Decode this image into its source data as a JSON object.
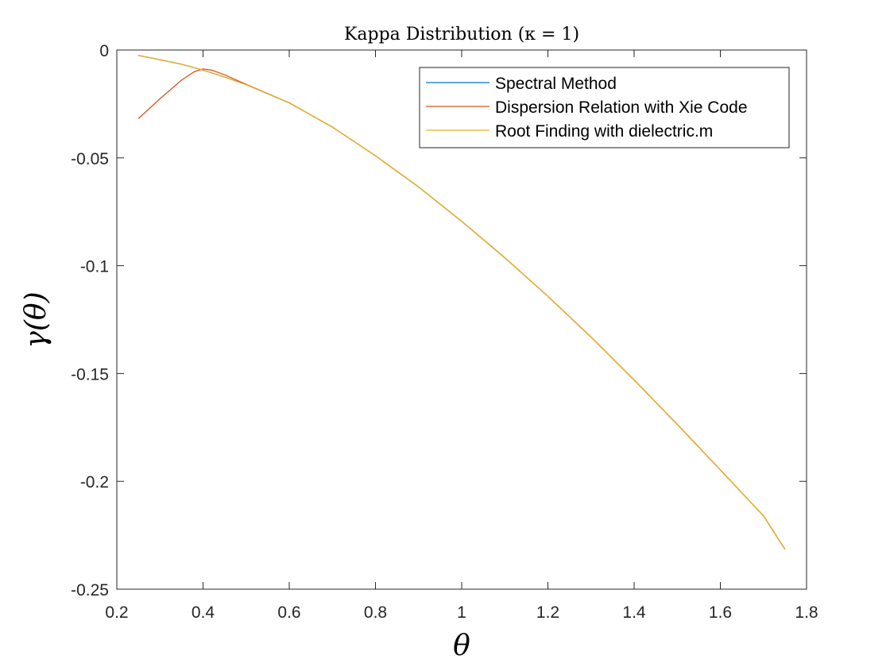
{
  "chart_data": {
    "type": "line",
    "title": "Kappa Distribution (κ = 1)",
    "xlabel": "θ",
    "ylabel": "γ(θ)",
    "xlim": [
      0.2,
      1.8
    ],
    "ylim": [
      -0.25,
      0
    ],
    "xticks": [
      0.2,
      0.4,
      0.6,
      0.8,
      1,
      1.2,
      1.4,
      1.6,
      1.8
    ],
    "xtick_labels": [
      "0.2",
      "0.4",
      "0.6",
      "0.8",
      "1",
      "1.2",
      "1.4",
      "1.6",
      "1.8"
    ],
    "yticks": [
      0,
      -0.05,
      -0.1,
      -0.15,
      -0.2,
      -0.25
    ],
    "ytick_labels": [
      "0",
      "-0.05",
      "-0.1",
      "-0.15",
      "-0.2",
      "-0.25"
    ],
    "grid": false,
    "legend_position": "top-right",
    "series": [
      {
        "name": "Spectral Method",
        "color": "#0072BD",
        "x": [
          0.25,
          0.3,
          0.35,
          0.4,
          0.45,
          0.5,
          0.6,
          0.7,
          0.8,
          0.9,
          1.0,
          1.1,
          1.2,
          1.3,
          1.4,
          1.5,
          1.6,
          1.7,
          1.75
        ],
        "y": [
          -0.0025,
          -0.0045,
          -0.0066,
          -0.0093,
          -0.0125,
          -0.0161,
          -0.0245,
          -0.0357,
          -0.049,
          -0.0635,
          -0.0794,
          -0.0963,
          -0.1142,
          -0.1331,
          -0.153,
          -0.1736,
          -0.1947,
          -0.216,
          -0.2315
        ]
      },
      {
        "name": "Dispersion Relation with Xie Code",
        "color": "#D95319",
        "x": [
          0.25,
          0.3,
          0.35,
          0.38,
          0.4,
          0.42,
          0.45,
          0.5,
          0.6,
          0.7,
          0.8,
          0.9,
          1.0,
          1.1,
          1.2,
          1.3,
          1.4,
          1.5,
          1.6,
          1.7,
          1.75
        ],
        "y": [
          -0.0318,
          -0.0226,
          -0.014,
          -0.01,
          -0.0088,
          -0.0093,
          -0.0115,
          -0.0159,
          -0.0245,
          -0.0357,
          -0.049,
          -0.0635,
          -0.0794,
          -0.0963,
          -0.1142,
          -0.1331,
          -0.153,
          -0.1736,
          -0.1947,
          -0.216,
          -0.2315
        ]
      },
      {
        "name": "Root Finding with dielectric.m",
        "color": "#EDB120",
        "x": [
          0.25,
          0.3,
          0.35,
          0.4,
          0.45,
          0.5,
          0.6,
          0.7,
          0.8,
          0.9,
          1.0,
          1.1,
          1.2,
          1.3,
          1.4,
          1.5,
          1.6,
          1.7,
          1.75
        ],
        "y": [
          -0.0025,
          -0.0045,
          -0.0066,
          -0.0093,
          -0.0125,
          -0.0161,
          -0.0245,
          -0.0357,
          -0.049,
          -0.0635,
          -0.0794,
          -0.0963,
          -0.1142,
          -0.1331,
          -0.153,
          -0.1736,
          -0.1947,
          -0.216,
          -0.2315
        ]
      }
    ]
  }
}
